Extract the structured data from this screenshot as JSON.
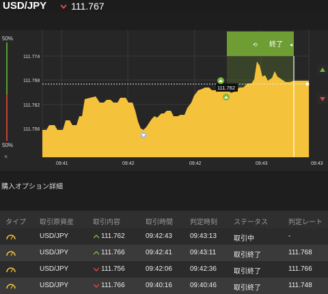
{
  "header": {
    "pair": "USD/JPY",
    "price": "111.767",
    "trend_icon": "down-arrow-icon",
    "trend_color": "#e04444"
  },
  "sidebar": {
    "top_pct": "50%",
    "bottom_pct": "50%",
    "close": "×"
  },
  "chart": {
    "y_ticks": [
      "111.774",
      "111.768",
      "111.762",
      "111.756"
    ],
    "x_ticks": [
      "09:41",
      "09:42",
      "09:42",
      "09:43",
      "09:43"
    ],
    "current_label": "111.762",
    "end_zone_label": "終了",
    "fill_color": "#f5c33b",
    "end_zone_color": "#6e9d34"
  },
  "section": {
    "title": "購入オプション詳細"
  },
  "table": {
    "headers": [
      "タイプ",
      "取引原資産",
      "取引内容",
      "取引時間",
      "判定時刻",
      "ステータス",
      "判定レート"
    ],
    "rows": [
      {
        "asset": "USD/JPY",
        "direction": "up",
        "content": "111.762",
        "trade_time": "09:42:43",
        "judge_time": "09:43:13",
        "status": "取引中",
        "rate": "-"
      },
      {
        "asset": "USD/JPY",
        "direction": "up",
        "content": "111.766",
        "trade_time": "09:42:41",
        "judge_time": "09:43:11",
        "status": "取引終了",
        "rate": "111.768"
      },
      {
        "asset": "USD/JPY",
        "direction": "down",
        "content": "111.756",
        "trade_time": "09:42:06",
        "judge_time": "09:42:36",
        "status": "取引終了",
        "rate": "111.766"
      },
      {
        "asset": "USD/JPY",
        "direction": "down",
        "content": "111.766",
        "trade_time": "09:40:16",
        "judge_time": "09:40:46",
        "status": "取引終了",
        "rate": "111.748"
      }
    ]
  }
}
